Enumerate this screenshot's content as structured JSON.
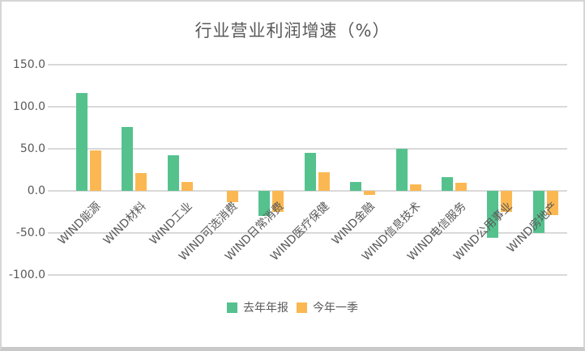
{
  "title": "行业营业利润增速（%）",
  "colors": {
    "series1": "#55c28e",
    "series2": "#fbb852",
    "gridline": "#d9d9d9",
    "text": "#595959",
    "card_border": "#d6d6d6"
  },
  "chart_data": {
    "type": "bar",
    "title": "行业营业利润增速（%）",
    "categories": [
      "WIND能源",
      "WIND材料",
      "WIND工业",
      "WIND可选消费",
      "WIND日常消费",
      "WIND医疗保健",
      "WIND金融",
      "WIND信息技术",
      "WIND电信服务",
      "WIND公用事业",
      "WIND房地产"
    ],
    "series": [
      {
        "name": "去年年报",
        "color": "#55c28e",
        "values": [
          116,
          76,
          42,
          0,
          -30,
          45,
          11,
          50,
          16,
          -56,
          -50
        ]
      },
      {
        "name": "今年一季",
        "color": "#fbb852",
        "values": [
          48,
          21,
          11,
          -13,
          -25,
          22,
          -5,
          8,
          10,
          -25,
          -29
        ]
      }
    ],
    "xlabel": "",
    "ylabel": "",
    "ylim": [
      -100,
      150
    ],
    "yticks": [
      150,
      100,
      50,
      0,
      -50,
      -100
    ],
    "ytick_labels": [
      "150.0",
      "100.0",
      "50.0",
      "0.0",
      "-50.0",
      "-100.0"
    ],
    "grid": true,
    "legend_position": "bottom"
  }
}
